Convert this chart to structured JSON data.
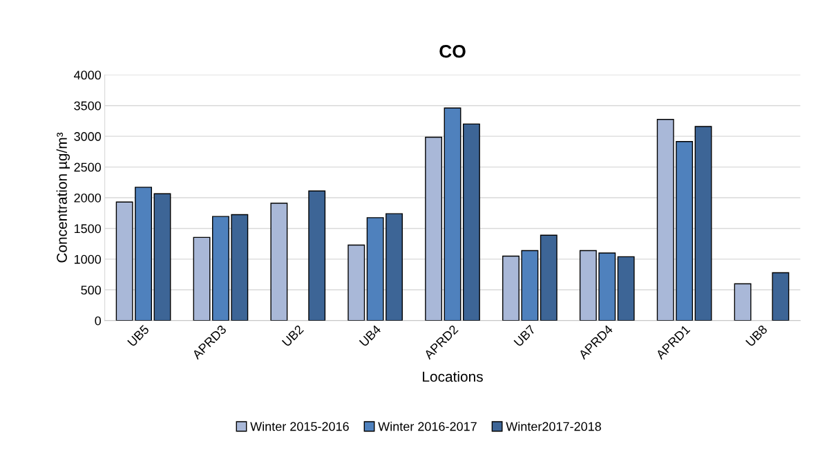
{
  "chart_data": {
    "type": "bar",
    "title": "CO",
    "xlabel": "Locations",
    "ylabel": "Concentration µg/m³",
    "categories": [
      "UB5",
      "APRD3",
      "UB2",
      "UB4",
      "APRD2",
      "UB7",
      "APRD4",
      "APRD1",
      "UB8"
    ],
    "series": [
      {
        "name": "Winter 2015-2016",
        "color": "#a9b8d8",
        "values": [
          1930,
          1355,
          1910,
          1230,
          2985,
          1050,
          1140,
          3275,
          600
        ]
      },
      {
        "name": "Winter 2016-2017",
        "color": "#4f81bd",
        "values": [
          2170,
          1695,
          null,
          1675,
          3460,
          1140,
          1100,
          2915,
          null
        ]
      },
      {
        "name": "Winter2017-2018",
        "color": "#3d6596",
        "values": [
          2065,
          1725,
          2110,
          1740,
          3200,
          1390,
          1040,
          3160,
          780
        ]
      }
    ],
    "ylim": [
      0,
      4000
    ],
    "yticks": [
      0,
      500,
      1000,
      1500,
      2000,
      2500,
      3000,
      3500,
      4000
    ],
    "grid": "y",
    "legend": "bottom"
  }
}
